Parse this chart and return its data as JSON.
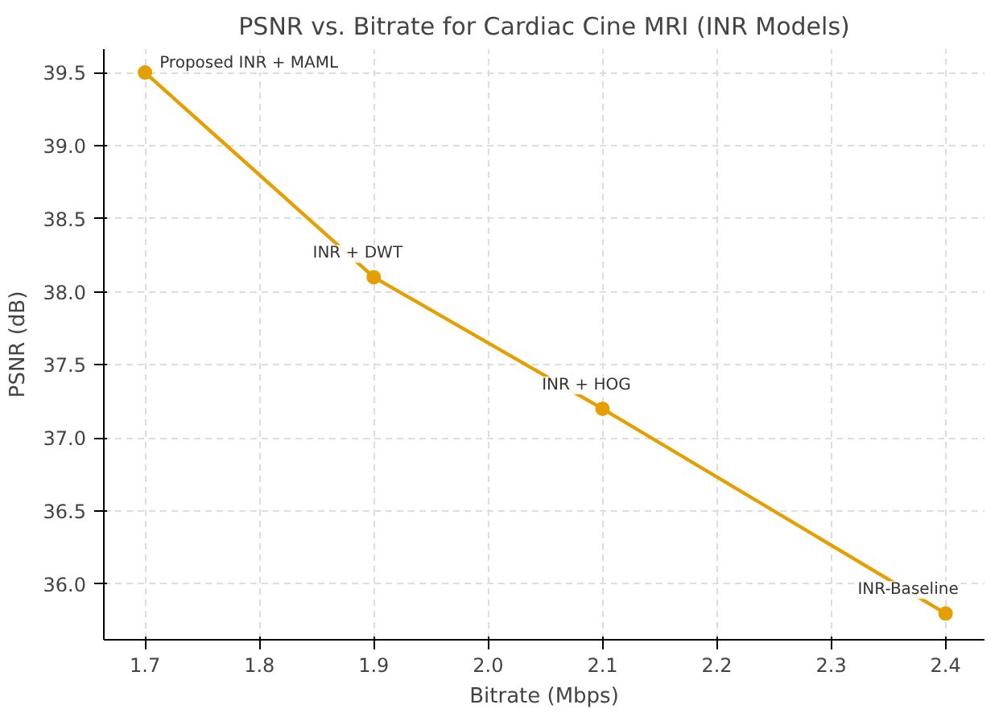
{
  "chart_data": {
    "type": "line",
    "title": "PSNR vs. Bitrate for Cardiac Cine MRI (INR Models)",
    "xlabel": "Bitrate (Mbps)",
    "ylabel": "PSNR (dB)",
    "x": [
      1.7,
      1.9,
      2.1,
      2.4
    ],
    "series": [
      {
        "color": "#e69f00",
        "values": [
          39.5,
          38.1,
          37.2,
          35.8
        ]
      }
    ],
    "xlim": [
      1.664,
      2.434
    ],
    "ylim": [
      35.62,
      39.66
    ],
    "xticks": [
      1.7,
      1.8,
      1.9,
      {
        "value": 2,
        "label": "2.0"
      },
      2.1,
      2.2,
      2.3,
      2.4
    ],
    "yticks": [
      {
        "value": 36,
        "label": "36.0"
      },
      36.5,
      {
        "value": 37,
        "label": "37.0"
      },
      37.5,
      {
        "value": 38,
        "label": "38.0"
      },
      38.5,
      {
        "value": 39,
        "label": "39.0"
      },
      39.5
    ],
    "annotations": [
      {
        "text": "Proposed INR + MAML",
        "x": 1.7,
        "y": 39.5
      },
      {
        "text": "INR + DWT",
        "x": 1.9,
        "y": 38.1
      },
      {
        "text": "INR + HOG",
        "x": 2.1,
        "y": 37.2
      },
      {
        "text": "INR-Baseline",
        "x": 2.4,
        "y": 35.8
      }
    ],
    "grid": true,
    "marker": "circle",
    "line_style": "solid"
  }
}
